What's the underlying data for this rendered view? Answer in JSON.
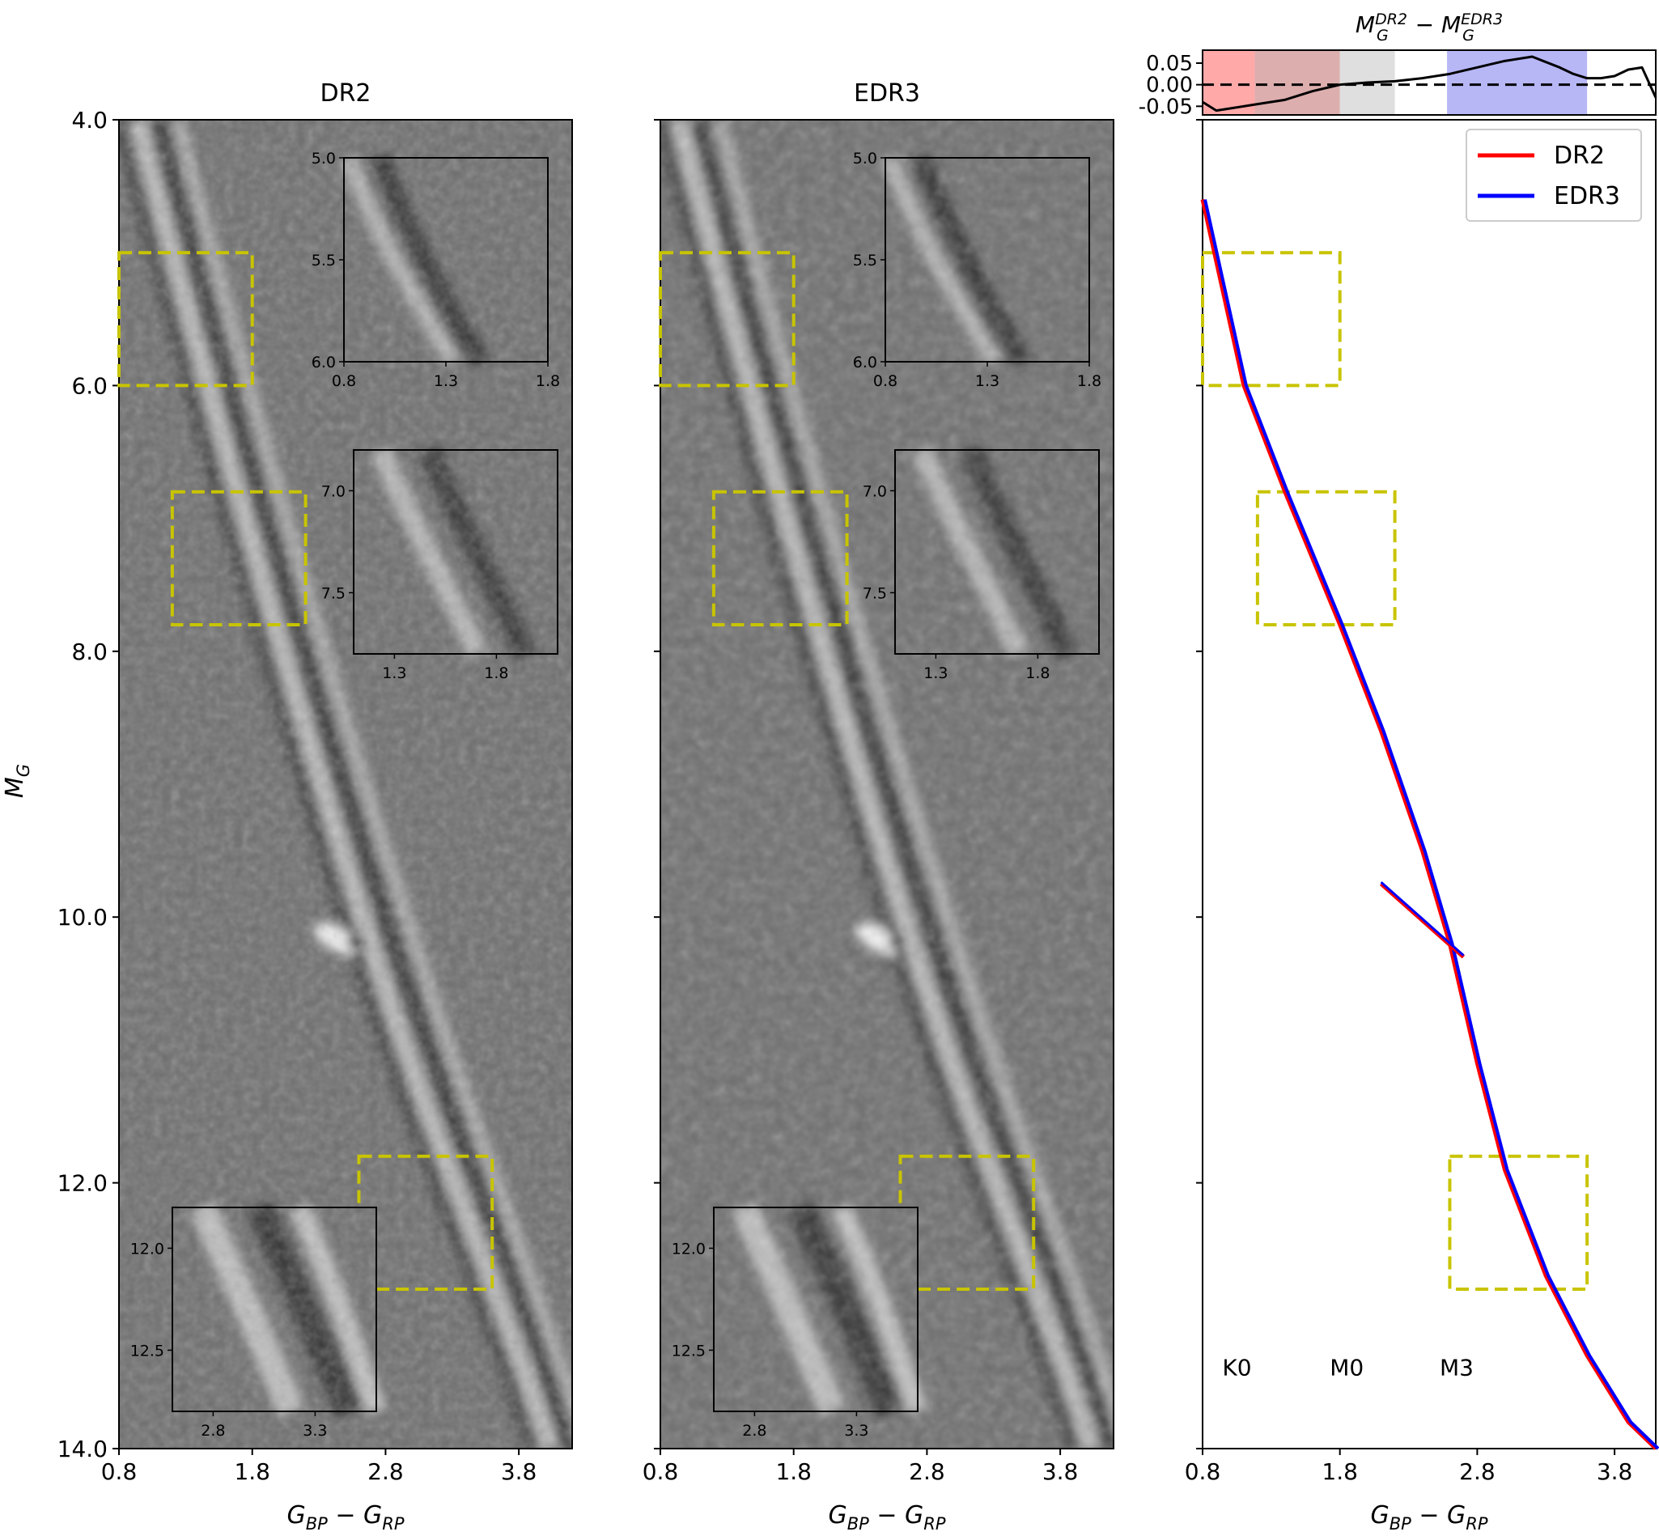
{
  "figure": {
    "ylabel": "M_G",
    "y_ticks": [
      "4.0",
      "6.0",
      "8.0",
      "10.0",
      "12.0",
      "14.0"
    ],
    "x_ticks": [
      "0.8",
      "1.8",
      "2.8",
      "3.8"
    ]
  },
  "chart_data": [
    {
      "type": "heatmap",
      "title": "DR2",
      "xlabel": "G_BP − G_RP",
      "ylabel": "M_G",
      "xlim": [
        0.8,
        4.2
      ],
      "ylim": [
        14.0,
        4.0
      ],
      "highlight_boxes_data": [
        {
          "x": [
            0.8,
            1.8
          ],
          "y": [
            5.0,
            6.0
          ]
        },
        {
          "x": [
            1.2,
            2.2
          ],
          "y": [
            6.8,
            7.8
          ]
        },
        {
          "x": [
            2.6,
            3.6
          ],
          "y": [
            11.8,
            12.8
          ]
        }
      ],
      "insets": [
        {
          "xticks": [
            "0.8",
            "1.3",
            "1.8"
          ],
          "yticks": [
            "5.0",
            "5.5",
            "6.0"
          ]
        },
        {
          "xticks": [
            "1.3",
            "1.8"
          ],
          "yticks": [
            "7.0",
            "7.5"
          ]
        },
        {
          "xticks": [
            "2.8",
            "3.3"
          ],
          "yticks": [
            "12.0",
            "12.5"
          ]
        }
      ]
    },
    {
      "type": "heatmap",
      "title": "EDR3",
      "xlabel": "G_BP − G_RP",
      "xlim": [
        0.8,
        4.2
      ],
      "ylim": [
        14.0,
        4.0
      ],
      "insets": [
        {
          "xticks": [
            "0.8",
            "1.3",
            "1.8"
          ],
          "yticks": [
            "5.0",
            "5.5",
            "6.0"
          ]
        },
        {
          "xticks": [
            "1.3",
            "1.8"
          ],
          "yticks": [
            "7.0",
            "7.5"
          ]
        },
        {
          "xticks": [
            "2.8",
            "3.3"
          ],
          "yticks": [
            "12.0",
            "12.5"
          ]
        }
      ]
    },
    {
      "type": "line",
      "xlabel": "G_BP − G_RP",
      "xlim": [
        0.8,
        4.1
      ],
      "ylim": [
        14.0,
        4.0
      ],
      "legend": "top-right",
      "series": [
        {
          "name": "DR2",
          "color": "#ff0000",
          "x": [
            0.8,
            1.1,
            1.4,
            1.8,
            2.1,
            2.4,
            2.6,
            2.8,
            3.0,
            3.3,
            3.6,
            3.9,
            4.1
          ],
          "y": [
            4.6,
            6.0,
            6.8,
            7.8,
            8.6,
            9.5,
            10.2,
            11.1,
            11.9,
            12.7,
            13.3,
            13.8,
            14.0
          ]
        },
        {
          "name": "EDR3",
          "color": "#0000ff",
          "x": [
            0.8,
            1.1,
            1.4,
            1.8,
            2.1,
            2.4,
            2.6,
            2.8,
            3.0,
            3.3,
            3.6,
            3.9,
            4.1
          ],
          "y": [
            4.6,
            6.0,
            6.8,
            7.8,
            8.6,
            9.5,
            10.2,
            11.1,
            11.9,
            12.7,
            13.3,
            13.8,
            14.0
          ]
        }
      ],
      "segments": [
        {
          "name": "DR2",
          "x": [
            2.1,
            2.7
          ],
          "y": [
            9.75,
            10.3
          ]
        },
        {
          "name": "EDR3",
          "x": [
            2.1,
            2.7
          ],
          "y": [
            9.75,
            10.3
          ]
        }
      ],
      "highlight_boxes": [
        {
          "x": [
            0.8,
            1.8
          ],
          "y": [
            5.0,
            6.0
          ]
        },
        {
          "x": [
            1.2,
            2.2
          ],
          "y": [
            6.8,
            7.8
          ]
        },
        {
          "x": [
            2.6,
            3.6
          ],
          "y": [
            11.8,
            12.8
          ]
        }
      ],
      "spectral_labels": [
        {
          "text": "K0",
          "x": 1.05,
          "y": 13.45
        },
        {
          "text": "M0",
          "x": 1.85,
          "y": 13.45
        },
        {
          "text": "M3",
          "x": 2.65,
          "y": 13.45
        }
      ]
    },
    {
      "type": "line",
      "title": "M_G^DR2 − M_G^EDR3",
      "xlim": [
        0.8,
        4.1
      ],
      "ylim": [
        -0.07,
        0.08
      ],
      "yticks": [
        "0.05",
        "0.00",
        "-0.05"
      ],
      "shaded_bands": [
        {
          "x": [
            0.8,
            1.18
          ],
          "color": "#ff9a9a"
        },
        {
          "x": [
            1.18,
            1.8
          ],
          "color": "#d7a0a0"
        },
        {
          "x": [
            1.8,
            2.2
          ],
          "color": "#d9d9d9"
        },
        {
          "x": [
            2.58,
            3.6
          ],
          "color": "#aaaaf4"
        }
      ],
      "x": [
        0.8,
        0.9,
        1.0,
        1.2,
        1.4,
        1.6,
        1.8,
        2.0,
        2.2,
        2.4,
        2.6,
        2.8,
        3.0,
        3.2,
        3.4,
        3.5,
        3.6,
        3.7,
        3.8,
        3.9,
        4.0,
        4.1
      ],
      "values": [
        -0.04,
        -0.06,
        -0.055,
        -0.045,
        -0.035,
        -0.015,
        0.0,
        0.005,
        0.008,
        0.015,
        0.025,
        0.04,
        0.055,
        0.065,
        0.04,
        0.025,
        0.015,
        0.015,
        0.02,
        0.035,
        0.04,
        -0.03
      ]
    }
  ]
}
